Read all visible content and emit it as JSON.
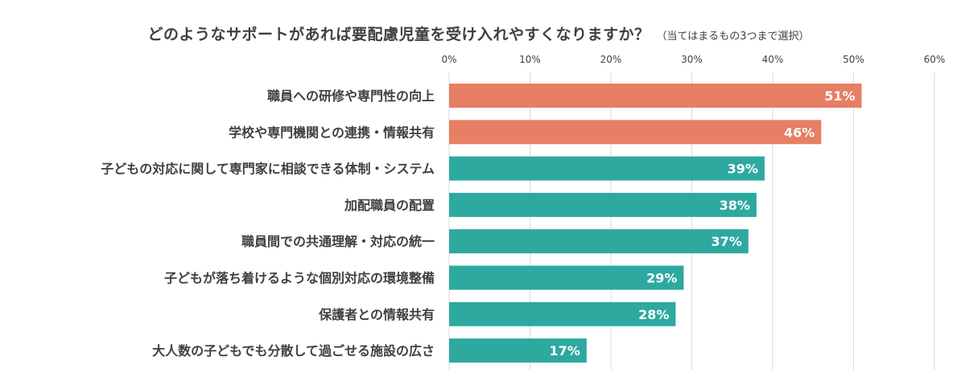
{
  "chart_data": {
    "type": "bar",
    "orientation": "horizontal",
    "title": "どのようなサポートがあれば要配慮児童を受け入れやすくなりますか？",
    "subtitle": "（当てはまるもの3つまで選択）",
    "categories": [
      "職員への研修や専門性の向上",
      "学校や専門機関との連携・情報共有",
      "子どもの対応に関して専門家に相談できる体制・システム",
      "加配職員の配置",
      "職員間での共通理解・対応の統一",
      "子どもが落ち着けるような個別対応の環境整備",
      "保護者との情報共有",
      "大人数の子どもでも分散して過ごせる施設の広さ"
    ],
    "values": [
      51,
      46,
      39,
      38,
      37,
      29,
      28,
      17
    ],
    "value_labels": [
      "51%",
      "46%",
      "39%",
      "38%",
      "37%",
      "29%",
      "28%",
      "17%"
    ],
    "xlim": [
      0,
      60
    ],
    "ticks": [
      0,
      10,
      20,
      30,
      40,
      50,
      60
    ],
    "tick_labels": [
      "0%",
      "10%",
      "20%",
      "30%",
      "40%",
      "50%",
      "60%"
    ],
    "axis_position": "top",
    "grid": true,
    "highlight_count": 2,
    "colors": {
      "highlight": "#E67F63",
      "normal": "#2DA9A0",
      "grid": "#D9D9D9",
      "text": "#404040",
      "value_text": "#FFFFFF"
    }
  }
}
